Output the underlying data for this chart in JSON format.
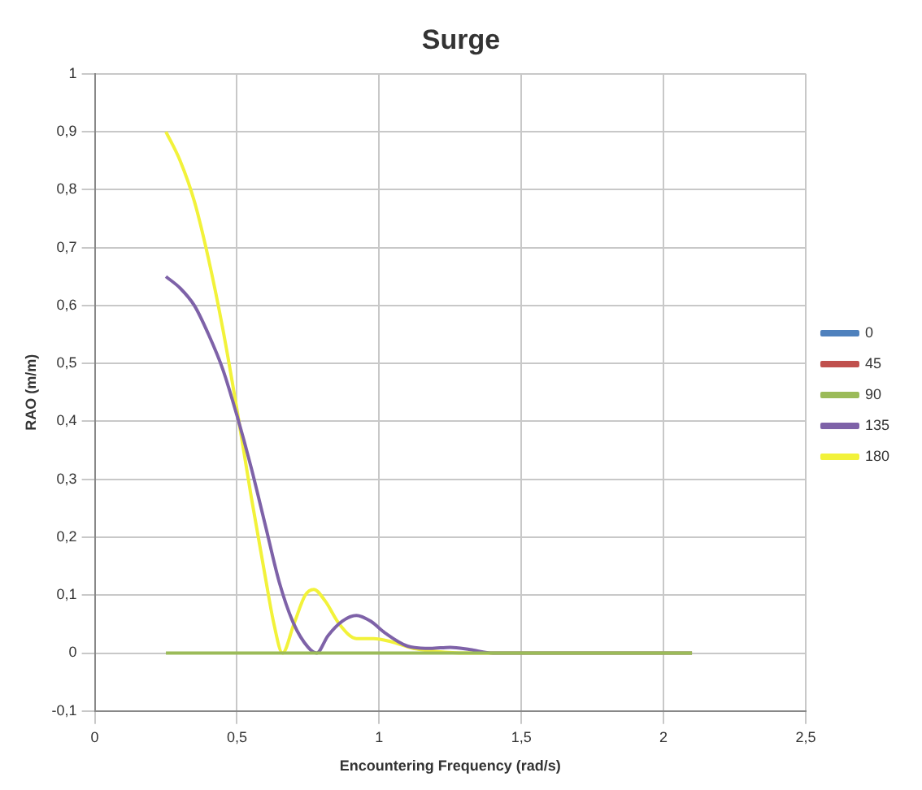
{
  "chart_data": {
    "type": "line",
    "title": "Surge",
    "xlabel": "Encountering Frequency (rad/s)",
    "ylabel": "RAO (m/m)",
    "xlim": [
      0,
      2.5
    ],
    "xticks": [
      0,
      {
        "value": 0.5,
        "label": "0,5"
      },
      1,
      {
        "value": 1.5,
        "label": "1,5"
      },
      2,
      {
        "value": 2.5,
        "label": "2,5"
      }
    ],
    "ylim": [
      -0.1,
      1
    ],
    "yticks": [
      {
        "value": -0.1,
        "label": "-0,1"
      },
      0,
      {
        "value": 0.1,
        "label": "0,1"
      },
      {
        "value": 0.2,
        "label": "0,2"
      },
      {
        "value": 0.3,
        "label": "0,3"
      },
      {
        "value": 0.4,
        "label": "0,4"
      },
      {
        "value": 0.5,
        "label": "0,5"
      },
      {
        "value": 0.6,
        "label": "0,6"
      },
      {
        "value": 0.7,
        "label": "0,7"
      },
      {
        "value": 0.8,
        "label": "0,8"
      },
      {
        "value": 0.9,
        "label": "0,9"
      },
      1
    ],
    "grid": true,
    "legend": "right",
    "marker": "none",
    "series": [
      {
        "name": "0",
        "color": "#4f81bd"
      },
      {
        "name": "45",
        "color": "#c0504d"
      },
      {
        "name": "90",
        "color": "#9bbb59",
        "x": [
          0.25,
          2.1
        ],
        "values": [
          0,
          0
        ]
      },
      {
        "name": "135",
        "color": "#7e62a8",
        "x": [
          0.25,
          0.3,
          0.35,
          0.4,
          0.45,
          0.5,
          0.55,
          0.6,
          0.65,
          0.7,
          0.75,
          0.78,
          0.82,
          0.87,
          0.92,
          0.97,
          1.02,
          1.1,
          1.18,
          1.25,
          1.32,
          1.4,
          1.6,
          2.1
        ],
        "values": [
          0.65,
          0.63,
          0.6,
          0.55,
          0.49,
          0.41,
          0.32,
          0.22,
          0.12,
          0.05,
          0.01,
          0,
          0.03,
          0.055,
          0.065,
          0.055,
          0.035,
          0.012,
          0.008,
          0.01,
          0.006,
          0,
          0,
          0
        ]
      },
      {
        "name": "180",
        "color": "#f2f23a",
        "x": [
          0.25,
          0.3,
          0.35,
          0.4,
          0.45,
          0.5,
          0.55,
          0.6,
          0.63,
          0.66,
          0.7,
          0.74,
          0.77,
          0.81,
          0.86,
          0.92,
          0.98,
          1.04,
          1.12,
          1.2,
          1.3,
          1.6,
          2.1
        ],
        "values": [
          0.9,
          0.85,
          0.78,
          0.68,
          0.56,
          0.42,
          0.27,
          0.13,
          0.05,
          0,
          0.05,
          0.1,
          0.11,
          0.09,
          0.05,
          0.025,
          0.025,
          0.02,
          0.008,
          0.003,
          0,
          0,
          0
        ]
      }
    ]
  }
}
